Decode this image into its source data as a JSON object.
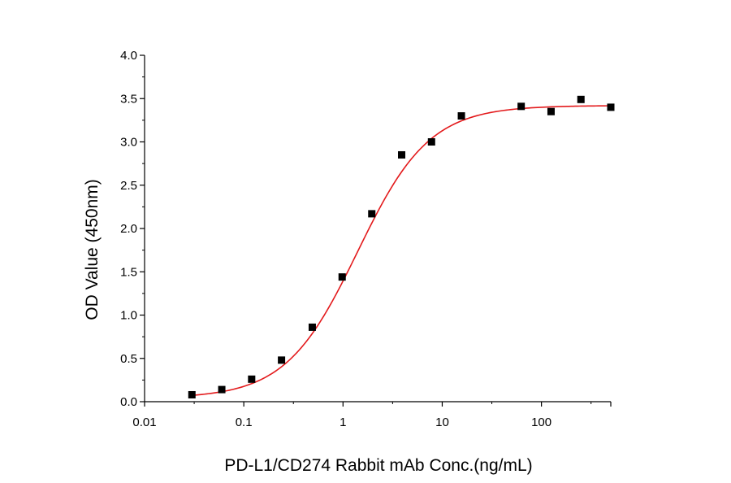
{
  "chart_data": {
    "type": "scatter",
    "xlabel": "PD-L1/CD274 Rabbit mAb Conc.(ng/mL)",
    "ylabel": "OD Value (450nm)",
    "x_scale": "log",
    "xlim": [
      0.01,
      500
    ],
    "ylim": [
      0,
      4.0
    ],
    "x_ticks": [
      0.01,
      0.1,
      1,
      10,
      100
    ],
    "x_tick_labels": [
      "0.01",
      "0.1",
      "1",
      "10",
      "100"
    ],
    "y_ticks": [
      0,
      0.5,
      1.0,
      1.5,
      2.0,
      2.5,
      3.0,
      3.5,
      4.0
    ],
    "y_tick_labels": [
      "0.0",
      "0.5",
      "1.0",
      "1.5",
      "2.0",
      "2.5",
      "3.0",
      "3.5",
      "4.0"
    ],
    "grid": false,
    "legend": "none",
    "series": [
      {
        "kind": "points",
        "color": "#000000",
        "marker": "square",
        "x": [
          0.03,
          0.06,
          0.12,
          0.24,
          0.49,
          0.98,
          1.95,
          3.9,
          7.8,
          15.6,
          62.5,
          125,
          250,
          500
        ],
        "y": [
          0.08,
          0.14,
          0.26,
          0.48,
          0.86,
          1.44,
          2.17,
          2.85,
          3.0,
          3.3,
          3.41,
          3.35,
          3.49,
          3.4
        ]
      },
      {
        "kind": "fit",
        "color": "#e31a1c",
        "model": "4PL",
        "bottom": 0.04,
        "top": 3.42,
        "ec50": 1.4,
        "hill": 1.2
      }
    ]
  }
}
